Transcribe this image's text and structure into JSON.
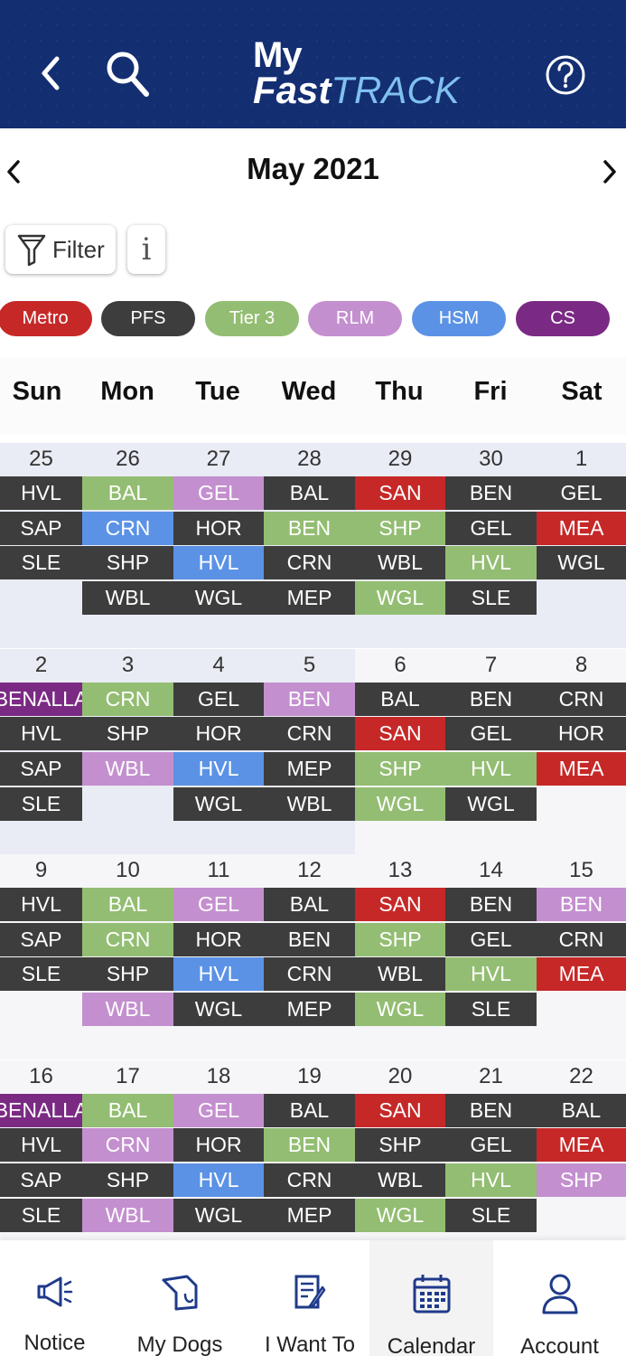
{
  "header": {
    "logo_line1": "My",
    "logo_fast": "Fast",
    "logo_track": "TRACK",
    "back_icon": "chevron-left-icon",
    "search_icon": "search-icon",
    "help_icon": "help-icon"
  },
  "month": {
    "title": "May 2021"
  },
  "toolbar": {
    "filter_label": "Filter",
    "info_label": "i"
  },
  "legend": [
    {
      "label": "Metro",
      "color": "#c62828"
    },
    {
      "label": "PFS",
      "color": "#3d3d3d"
    },
    {
      "label": "Tier 3",
      "color": "#93bd72"
    },
    {
      "label": "RLM",
      "color": "#c48fcf"
    },
    {
      "label": "HSM",
      "color": "#5b92e5"
    },
    {
      "label": "CS",
      "color": "#7b2a84"
    }
  ],
  "weekdays": [
    "Sun",
    "Mon",
    "Tue",
    "Wed",
    "Thu",
    "Fri",
    "Sat"
  ],
  "weeks": [
    {
      "days": [
        {
          "num": "25",
          "entries": [
            [
              "HVL",
              "PFS"
            ],
            [
              "SAP",
              "PFS"
            ],
            [
              "SLE",
              "PFS"
            ]
          ]
        },
        {
          "num": "26",
          "entries": [
            [
              "BAL",
              "Tier 3"
            ],
            [
              "CRN",
              "HSM"
            ],
            [
              "SHP",
              "PFS"
            ],
            [
              "WBL",
              "PFS"
            ]
          ]
        },
        {
          "num": "27",
          "entries": [
            [
              "GEL",
              "RLM"
            ],
            [
              "HOR",
              "PFS"
            ],
            [
              "HVL",
              "HSM"
            ],
            [
              "WGL",
              "PFS"
            ]
          ]
        },
        {
          "num": "28",
          "entries": [
            [
              "BAL",
              "PFS"
            ],
            [
              "BEN",
              "Tier 3"
            ],
            [
              "CRN",
              "PFS"
            ],
            [
              "MEP",
              "PFS"
            ]
          ]
        },
        {
          "num": "29",
          "entries": [
            [
              "SAN",
              "Metro"
            ],
            [
              "SHP",
              "Tier 3"
            ],
            [
              "WBL",
              "PFS"
            ],
            [
              "WGL",
              "Tier 3"
            ]
          ]
        },
        {
          "num": "30",
          "entries": [
            [
              "BEN",
              "PFS"
            ],
            [
              "GEL",
              "PFS"
            ],
            [
              "HVL",
              "Tier 3"
            ],
            [
              "SLE",
              "PFS"
            ]
          ]
        },
        {
          "num": "1",
          "entries": [
            [
              "GEL",
              "PFS"
            ],
            [
              "MEA",
              "Metro"
            ],
            [
              "WGL",
              "PFS"
            ]
          ]
        }
      ]
    },
    {
      "days": [
        {
          "num": "2",
          "entries": [
            [
              "BENALLA",
              "CS"
            ],
            [
              "HVL",
              "PFS"
            ],
            [
              "SAP",
              "PFS"
            ],
            [
              "SLE",
              "PFS"
            ]
          ]
        },
        {
          "num": "3",
          "entries": [
            [
              "CRN",
              "Tier 3"
            ],
            [
              "SHP",
              "PFS"
            ],
            [
              "WBL",
              "RLM"
            ]
          ]
        },
        {
          "num": "4",
          "entries": [
            [
              "GEL",
              "PFS"
            ],
            [
              "HOR",
              "PFS"
            ],
            [
              "HVL",
              "HSM"
            ],
            [
              "WGL",
              "PFS"
            ]
          ]
        },
        {
          "num": "5",
          "entries": [
            [
              "BEN",
              "RLM"
            ],
            [
              "CRN",
              "PFS"
            ],
            [
              "MEP",
              "PFS"
            ],
            [
              "WBL",
              "PFS"
            ]
          ]
        },
        {
          "num": "6",
          "entries": [
            [
              "BAL",
              "PFS"
            ],
            [
              "SAN",
              "Metro"
            ],
            [
              "SHP",
              "Tier 3"
            ],
            [
              "WGL",
              "Tier 3"
            ]
          ]
        },
        {
          "num": "7",
          "entries": [
            [
              "BEN",
              "PFS"
            ],
            [
              "GEL",
              "PFS"
            ],
            [
              "HVL",
              "Tier 3"
            ],
            [
              "WGL",
              "PFS"
            ]
          ]
        },
        {
          "num": "8",
          "entries": [
            [
              "CRN",
              "PFS"
            ],
            [
              "HOR",
              "PFS"
            ],
            [
              "MEA",
              "Metro"
            ]
          ]
        }
      ]
    },
    {
      "days": [
        {
          "num": "9",
          "entries": [
            [
              "HVL",
              "PFS"
            ],
            [
              "SAP",
              "PFS"
            ],
            [
              "SLE",
              "PFS"
            ]
          ]
        },
        {
          "num": "10",
          "entries": [
            [
              "BAL",
              "Tier 3"
            ],
            [
              "CRN",
              "Tier 3"
            ],
            [
              "SHP",
              "PFS"
            ],
            [
              "WBL",
              "RLM"
            ]
          ]
        },
        {
          "num": "11",
          "entries": [
            [
              "GEL",
              "RLM"
            ],
            [
              "HOR",
              "PFS"
            ],
            [
              "HVL",
              "HSM"
            ],
            [
              "WGL",
              "PFS"
            ]
          ]
        },
        {
          "num": "12",
          "entries": [
            [
              "BAL",
              "PFS"
            ],
            [
              "BEN",
              "PFS"
            ],
            [
              "CRN",
              "PFS"
            ],
            [
              "MEP",
              "PFS"
            ]
          ]
        },
        {
          "num": "13",
          "entries": [
            [
              "SAN",
              "Metro"
            ],
            [
              "SHP",
              "Tier 3"
            ],
            [
              "WBL",
              "PFS"
            ],
            [
              "WGL",
              "Tier 3"
            ]
          ]
        },
        {
          "num": "14",
          "entries": [
            [
              "BEN",
              "PFS"
            ],
            [
              "GEL",
              "PFS"
            ],
            [
              "HVL",
              "Tier 3"
            ],
            [
              "SLE",
              "PFS"
            ]
          ]
        },
        {
          "num": "15",
          "entries": [
            [
              "BEN",
              "RLM"
            ],
            [
              "CRN",
              "PFS"
            ],
            [
              "MEA",
              "Metro"
            ]
          ]
        }
      ]
    },
    {
      "days": [
        {
          "num": "16",
          "entries": [
            [
              "BENALLA",
              "CS"
            ],
            [
              "HVL",
              "PFS"
            ],
            [
              "SAP",
              "PFS"
            ],
            [
              "SLE",
              "PFS"
            ]
          ]
        },
        {
          "num": "17",
          "entries": [
            [
              "BAL",
              "Tier 3"
            ],
            [
              "CRN",
              "RLM"
            ],
            [
              "SHP",
              "PFS"
            ],
            [
              "WBL",
              "RLM"
            ]
          ]
        },
        {
          "num": "18",
          "entries": [
            [
              "GEL",
              "RLM"
            ],
            [
              "HOR",
              "PFS"
            ],
            [
              "HVL",
              "HSM"
            ],
            [
              "WGL",
              "PFS"
            ]
          ]
        },
        {
          "num": "19",
          "entries": [
            [
              "BAL",
              "PFS"
            ],
            [
              "BEN",
              "Tier 3"
            ],
            [
              "CRN",
              "PFS"
            ],
            [
              "MEP",
              "PFS"
            ]
          ]
        },
        {
          "num": "20",
          "entries": [
            [
              "SAN",
              "Metro"
            ],
            [
              "SHP",
              "PFS"
            ],
            [
              "WBL",
              "PFS"
            ],
            [
              "WGL",
              "Tier 3"
            ]
          ]
        },
        {
          "num": "21",
          "entries": [
            [
              "BEN",
              "PFS"
            ],
            [
              "GEL",
              "PFS"
            ],
            [
              "HVL",
              "Tier 3"
            ],
            [
              "SLE",
              "PFS"
            ]
          ]
        },
        {
          "num": "22",
          "entries": [
            [
              "BAL",
              "PFS"
            ],
            [
              "MEA",
              "Metro"
            ],
            [
              "SHP",
              "RLM"
            ]
          ]
        }
      ]
    }
  ],
  "bottom_nav": [
    {
      "label": "Notice",
      "icon": "megaphone-icon",
      "active": false
    },
    {
      "label": "My Dogs",
      "icon": "dog-icon",
      "active": false
    },
    {
      "label": "I Want To",
      "icon": "edit-note-icon",
      "active": false
    },
    {
      "label": "Calendar",
      "icon": "calendar-icon",
      "active": true
    },
    {
      "label": "Account",
      "icon": "account-icon",
      "active": false
    }
  ]
}
